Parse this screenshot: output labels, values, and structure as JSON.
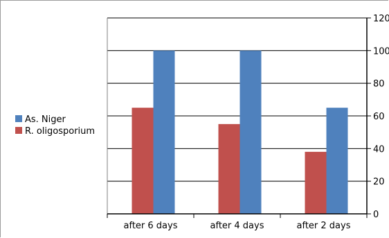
{
  "chart_data": {
    "type": "bar",
    "categories": [
      "after 6 days",
      "after 4 days",
      "after 2 days"
    ],
    "series": [
      {
        "name": "R. oligosporium",
        "color": "#c0504d",
        "values": [
          65,
          55,
          38
        ]
      },
      {
        "name": "As. Niger",
        "color": "#4f81bd",
        "values": [
          100,
          100,
          65
        ]
      }
    ],
    "legend_order": [
      "As. Niger",
      "R. oligosporium"
    ],
    "ylim": [
      0,
      120
    ],
    "yticks": [
      "0",
      "20",
      "40",
      "60",
      "80",
      "100",
      "120"
    ],
    "y_axis_side": "right",
    "grid": true,
    "legend_position": "left",
    "title": "",
    "xlabel": "",
    "ylabel": ""
  }
}
